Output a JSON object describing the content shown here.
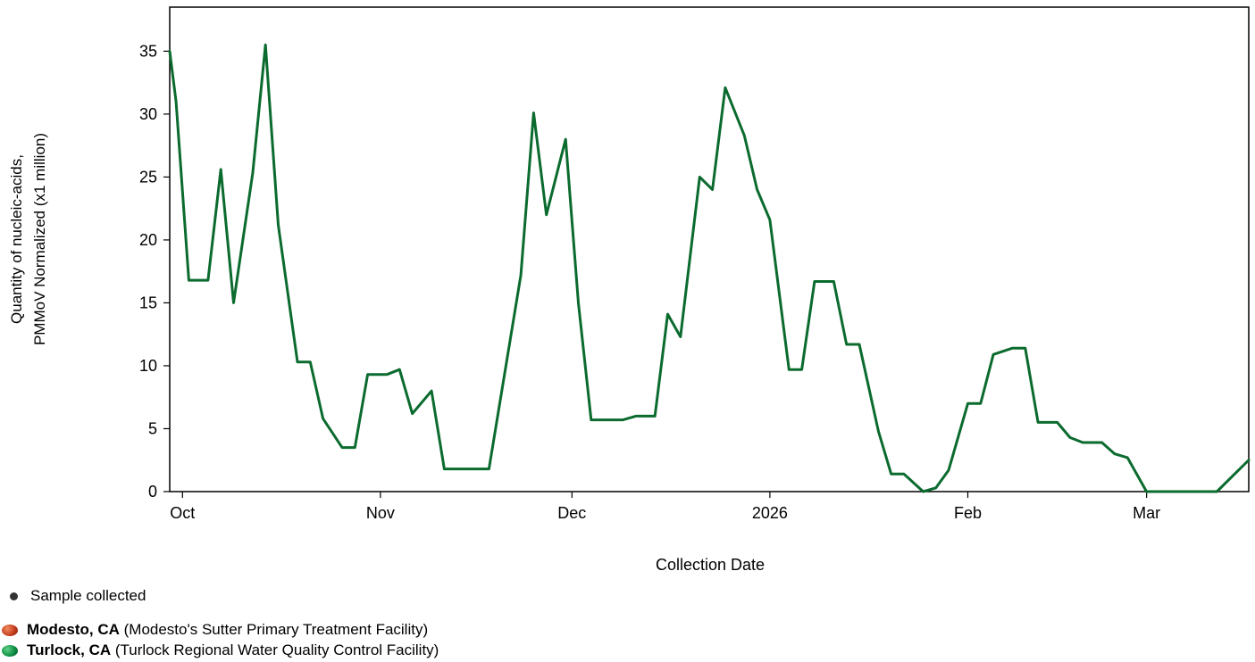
{
  "chart_data": {
    "type": "line",
    "ylabel": [
      "Quantity of nucleic-acids,",
      "PMMoV Normalized (x1 million)"
    ],
    "xlabel": "Collection Date",
    "ylim": [
      0,
      38.5
    ],
    "yticks": [
      0,
      5,
      10,
      15,
      20,
      25,
      30,
      35
    ],
    "xlim": [
      "2025-09-29",
      "2026-03-17"
    ],
    "xticks": [
      {
        "date": "2025-10-01",
        "label": "Oct"
      },
      {
        "date": "2025-11-01",
        "label": "Nov"
      },
      {
        "date": "2025-12-01",
        "label": "Dec"
      },
      {
        "date": "2026-01-01",
        "label": "2026"
      },
      {
        "date": "2026-02-01",
        "label": "Feb"
      },
      {
        "date": "2026-03-01",
        "label": "Mar"
      }
    ],
    "grid": false,
    "series": [
      {
        "name": "Turlock, CA",
        "color": "#0b6b2e",
        "points": [
          [
            "2025-09-29",
            35.0
          ],
          [
            "2025-09-30",
            31.0
          ],
          [
            "2025-10-02",
            16.8
          ],
          [
            "2025-10-05",
            16.8
          ],
          [
            "2025-10-07",
            25.6
          ],
          [
            "2025-10-09",
            15.0
          ],
          [
            "2025-10-12",
            25.3
          ],
          [
            "2025-10-14",
            35.5
          ],
          [
            "2025-10-16",
            21.2
          ],
          [
            "2025-10-19",
            10.3
          ],
          [
            "2025-10-21",
            10.3
          ],
          [
            "2025-10-23",
            5.8
          ],
          [
            "2025-10-26",
            3.5
          ],
          [
            "2025-10-28",
            3.5
          ],
          [
            "2025-10-30",
            9.3
          ],
          [
            "2025-11-02",
            9.3
          ],
          [
            "2025-11-04",
            9.7
          ],
          [
            "2025-11-06",
            6.2
          ],
          [
            "2025-11-09",
            8.0
          ],
          [
            "2025-11-11",
            1.8
          ],
          [
            "2025-11-13",
            1.8
          ],
          [
            "2025-11-16",
            1.8
          ],
          [
            "2025-11-18",
            1.8
          ],
          [
            "2025-11-23",
            17.2
          ],
          [
            "2025-11-25",
            30.1
          ],
          [
            "2025-11-27",
            22.0
          ],
          [
            "2025-11-30",
            28.0
          ],
          [
            "2025-12-02",
            15.0
          ],
          [
            "2025-12-04",
            5.7
          ],
          [
            "2025-12-07",
            5.7
          ],
          [
            "2025-12-09",
            5.7
          ],
          [
            "2025-12-11",
            6.0
          ],
          [
            "2025-12-14",
            6.0
          ],
          [
            "2025-12-16",
            14.1
          ],
          [
            "2025-12-18",
            12.3
          ],
          [
            "2025-12-21",
            25.0
          ],
          [
            "2025-12-23",
            24.0
          ],
          [
            "2025-12-25",
            32.1
          ],
          [
            "2025-12-28",
            28.3
          ],
          [
            "2025-12-30",
            24.0
          ],
          [
            "2026-01-01",
            21.6
          ],
          [
            "2026-01-04",
            9.7
          ],
          [
            "2026-01-06",
            9.7
          ],
          [
            "2026-01-08",
            16.7
          ],
          [
            "2026-01-11",
            16.7
          ],
          [
            "2026-01-13",
            11.7
          ],
          [
            "2026-01-15",
            11.7
          ],
          [
            "2026-01-18",
            4.8
          ],
          [
            "2026-01-20",
            1.4
          ],
          [
            "2026-01-22",
            1.4
          ],
          [
            "2026-01-25",
            0.0
          ],
          [
            "2026-01-27",
            0.3
          ],
          [
            "2026-01-29",
            1.7
          ],
          [
            "2026-02-01",
            7.0
          ],
          [
            "2026-02-03",
            7.0
          ],
          [
            "2026-02-05",
            10.9
          ],
          [
            "2026-02-08",
            11.4
          ],
          [
            "2026-02-10",
            11.4
          ],
          [
            "2026-02-12",
            5.5
          ],
          [
            "2026-02-15",
            5.5
          ],
          [
            "2026-02-17",
            4.3
          ],
          [
            "2026-02-19",
            3.9
          ],
          [
            "2026-02-22",
            3.9
          ],
          [
            "2026-02-24",
            3.0
          ],
          [
            "2026-02-26",
            2.7
          ],
          [
            "2026-03-01",
            0.0
          ],
          [
            "2026-03-03",
            0.0
          ],
          [
            "2026-03-05",
            0.0
          ],
          [
            "2026-03-08",
            0.0
          ],
          [
            "2026-03-10",
            0.0
          ],
          [
            "2026-03-12",
            0.0
          ],
          [
            "2026-03-17",
            2.5
          ]
        ]
      }
    ]
  },
  "legend": {
    "sample_label": "Sample collected",
    "sample_color": "#333333",
    "sites": [
      {
        "name": "Modesto, CA",
        "detail": "(Modesto's Sutter Primary Treatment Facility)",
        "color": "#c0391b"
      },
      {
        "name": "Turlock, CA",
        "detail": "(Turlock Regional Water Quality Control Facility)",
        "color": "#0b6b2e"
      }
    ]
  }
}
